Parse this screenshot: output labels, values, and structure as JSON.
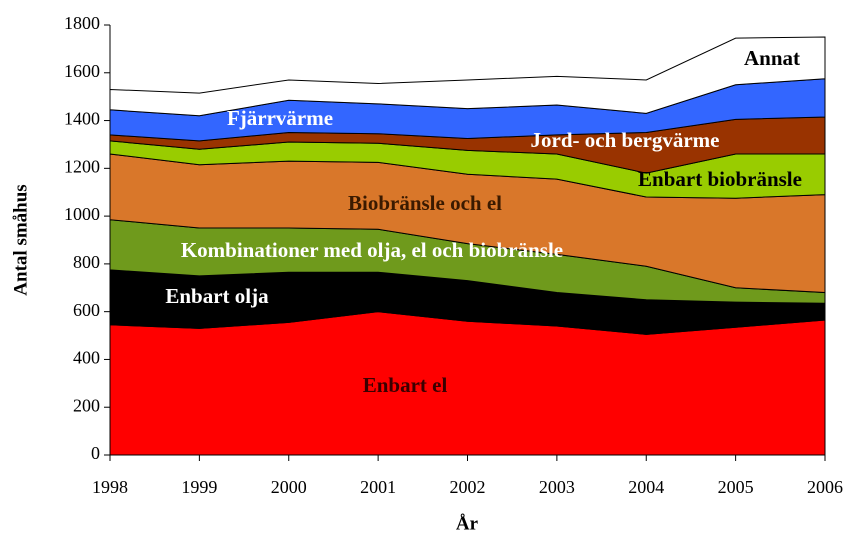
{
  "chart_data": {
    "type": "stacked_area",
    "x_label": "År",
    "y_label": "Antal småhus",
    "x": [
      1998,
      1999,
      2000,
      2001,
      2002,
      2003,
      2004,
      2005,
      2006
    ],
    "xlim": [
      1998,
      2006
    ],
    "xticks": [
      1998,
      1999,
      2000,
      2001,
      2002,
      2003,
      2004,
      2005,
      2006
    ],
    "ylim": [
      0,
      1800
    ],
    "yticks": [
      0,
      200,
      400,
      600,
      800,
      1000,
      1200,
      1400,
      1600,
      1800
    ],
    "series": [
      {
        "name": "Enbart el",
        "color": "#ff0000",
        "values": [
          545,
          530,
          555,
          600,
          560,
          540,
          505,
          535,
          565
        ]
      },
      {
        "name": "Enbart olja",
        "color": "#000000",
        "values": [
          230,
          220,
          210,
          165,
          170,
          140,
          145,
          105,
          70
        ]
      },
      {
        "name": "Kombinationer med olja, el och biobränsle",
        "color": "#6f9a1c",
        "values": [
          210,
          200,
          185,
          180,
          155,
          160,
          140,
          60,
          45
        ]
      },
      {
        "name": "Biobränsle och el",
        "color": "#d9772a",
        "values": [
          275,
          265,
          280,
          280,
          290,
          315,
          290,
          375,
          410
        ]
      },
      {
        "name": "Enbart biobränsle",
        "color": "#99cc00",
        "values": [
          55,
          65,
          80,
          80,
          100,
          105,
          100,
          185,
          170
        ]
      },
      {
        "name": "Jord- och bergvärme",
        "color": "#993300",
        "values": [
          25,
          35,
          40,
          40,
          50,
          80,
          170,
          145,
          155
        ]
      },
      {
        "name": "Fjärrvärme",
        "color": "#3366ff",
        "values": [
          105,
          105,
          135,
          125,
          125,
          125,
          80,
          145,
          160
        ]
      },
      {
        "name": "Annat",
        "color": "#ffffff",
        "values": [
          85,
          95,
          85,
          85,
          120,
          120,
          140,
          195,
          175
        ]
      }
    ]
  }
}
